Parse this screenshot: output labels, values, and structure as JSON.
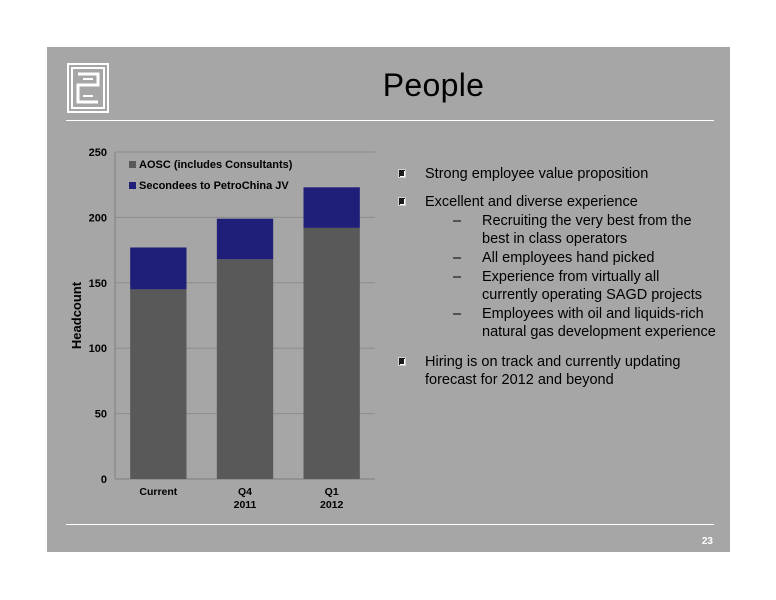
{
  "slide": {
    "title": "People",
    "page_number": "23",
    "colors": {
      "background": "#a6a6a6",
      "rule": "#ffffff"
    }
  },
  "logo": {
    "icon": "company-logo-icon"
  },
  "bullets": [
    {
      "text": "Strong employee value proposition",
      "subs": []
    },
    {
      "text": "Excellent and diverse experience",
      "subs": [
        "Recruiting the very best from the best in class operators",
        "All employees hand picked",
        "Experience from virtually all currently operating SAGD projects",
        "Employees with oil and liquids-rich natural gas development experience"
      ]
    },
    {
      "text": "Hiring is on track and currently updating forecast for 2012 and beyond",
      "subs": []
    }
  ],
  "sub_marker": "–",
  "chart_data": {
    "type": "bar",
    "stacked": true,
    "categories": [
      [
        "Current"
      ],
      [
        "Q4",
        "2011"
      ],
      [
        "Q1",
        "2012"
      ]
    ],
    "series": [
      {
        "name": "AOSC (includes Consultants)",
        "color": "#595959",
        "values": [
          145,
          168,
          192
        ]
      },
      {
        "name": "Secondees to PetroChina JV",
        "color": "#1f1f7a",
        "values": [
          32,
          31,
          31
        ]
      }
    ],
    "ylabel": "Headcount",
    "xlabel": "",
    "ylim": [
      0,
      250
    ],
    "yticks": [
      0,
      50,
      100,
      150,
      200,
      250
    ],
    "grid": true,
    "legend_position": "top-left"
  }
}
